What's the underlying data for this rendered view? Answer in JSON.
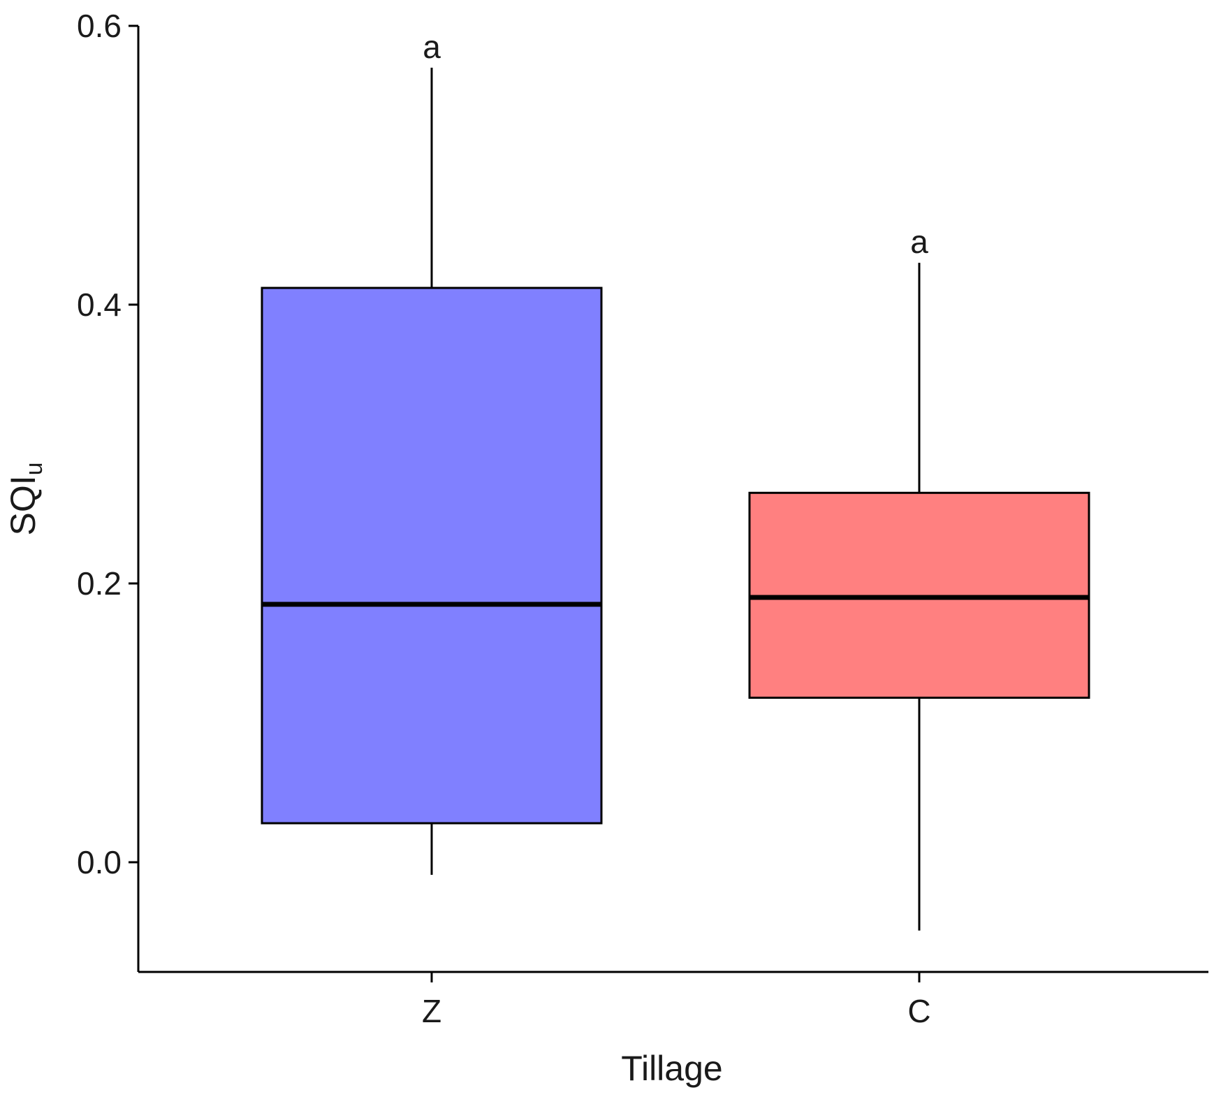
{
  "chart_data": {
    "type": "boxplot",
    "xlabel": "Tillage",
    "ylabel": "SQI",
    "ylabel_subscript": "u",
    "ylim": [
      -0.08,
      0.6
    ],
    "yticks": [
      0.0,
      0.2,
      0.4,
      0.6
    ],
    "ytick_labels": [
      "0.0",
      "0.2",
      "0.4",
      "0.6"
    ],
    "grid": false,
    "legend": "none",
    "categories": [
      "Z",
      "C"
    ],
    "boxes": [
      {
        "category": "Z",
        "whisker_low": -0.009,
        "q1": 0.028,
        "median": 0.185,
        "q3": 0.412,
        "whisker_high": 0.57,
        "fill": "#8080ff",
        "letter": "a"
      },
      {
        "category": "C",
        "whisker_low": -0.049,
        "q1": 0.118,
        "median": 0.19,
        "q3": 0.265,
        "whisker_high": 0.43,
        "fill": "#ff8080",
        "letter": "a"
      }
    ]
  }
}
